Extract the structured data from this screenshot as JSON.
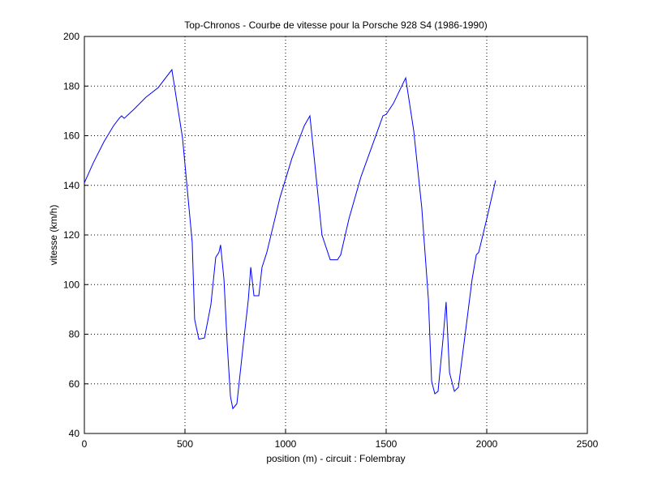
{
  "chart_data": {
    "type": "line",
    "title": "Top-Chronos - Courbe de vitesse pour la Porsche 928 S4 (1986-1990)",
    "xlabel": "position (m) - circuit : Folembray",
    "ylabel": "vitesse (km/h)",
    "x": [
      0,
      44,
      97,
      145,
      173,
      185,
      198,
      246,
      306,
      367,
      435,
      488,
      536,
      548,
      569,
      597,
      629,
      653,
      669,
      677,
      694,
      710,
      726,
      738,
      758,
      790,
      815,
      827,
      843,
      867,
      883,
      907,
      972,
      1032,
      1093,
      1121,
      1145,
      1181,
      1222,
      1258,
      1274,
      1315,
      1375,
      1444,
      1484,
      1500,
      1536,
      1597,
      1637,
      1677,
      1710,
      1726,
      1742,
      1758,
      1782,
      1798,
      1815,
      1839,
      1859,
      1899,
      1927,
      1948,
      1960,
      2000,
      2044
    ],
    "series": [
      {
        "name": "vitesse",
        "color": "#0000ff",
        "values": [
          141,
          149,
          157.5,
          164,
          167,
          168,
          167,
          170.6,
          175.5,
          179.4,
          186.6,
          159,
          117,
          86,
          78,
          78.5,
          92,
          111,
          113,
          116,
          102,
          76,
          55,
          50,
          52,
          76,
          94,
          107,
          95.5,
          95.5,
          107,
          113,
          135,
          151,
          164,
          168,
          149,
          120,
          110,
          110,
          112,
          126.5,
          143.5,
          159,
          168,
          168.6,
          173,
          183.3,
          162,
          131,
          94,
          61,
          56,
          57,
          77.5,
          93,
          64.5,
          57,
          58.6,
          84,
          102,
          112,
          113,
          126.5,
          142
        ]
      }
    ],
    "xlim": [
      0,
      2500
    ],
    "xticks": [
      0,
      500,
      1000,
      1500,
      2000,
      2500
    ],
    "ylim": [
      40,
      200
    ],
    "yticks": [
      40,
      60,
      80,
      100,
      120,
      140,
      160,
      180,
      200
    ],
    "grid": true
  }
}
